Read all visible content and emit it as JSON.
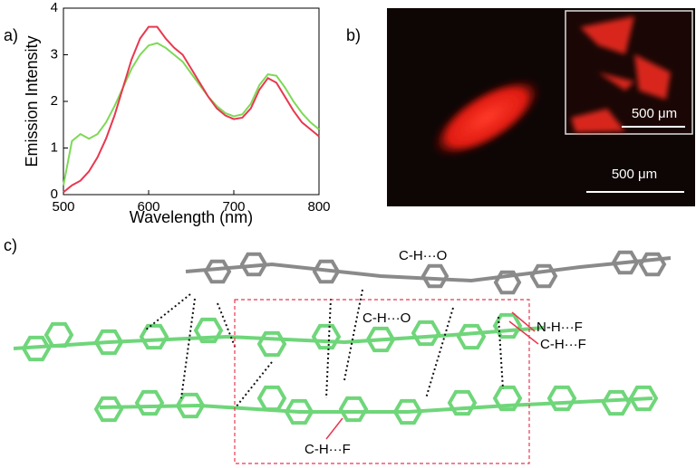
{
  "chart_data": {
    "type": "line",
    "xlabel": "Wavelength (nm)",
    "ylabel": "Emission Intensity",
    "x": [
      500,
      510,
      520,
      530,
      540,
      550,
      560,
      570,
      580,
      590,
      600,
      610,
      620,
      630,
      640,
      650,
      660,
      670,
      680,
      690,
      700,
      710,
      720,
      730,
      740,
      750,
      760,
      770,
      780,
      790,
      800
    ],
    "series": [
      {
        "color": "#7ed957",
        "values": [
          0.2,
          1.15,
          1.3,
          1.2,
          1.3,
          1.55,
          1.9,
          2.3,
          2.7,
          3.0,
          3.2,
          3.25,
          3.15,
          3.0,
          2.85,
          2.6,
          2.35,
          2.1,
          1.9,
          1.75,
          1.68,
          1.72,
          1.95,
          2.35,
          2.58,
          2.55,
          2.3,
          2.0,
          1.75,
          1.55,
          1.4
        ]
      },
      {
        "color": "#e8384f",
        "values": [
          0.05,
          0.2,
          0.3,
          0.5,
          0.8,
          1.2,
          1.7,
          2.3,
          2.9,
          3.35,
          3.6,
          3.6,
          3.35,
          3.15,
          3.0,
          2.7,
          2.4,
          2.1,
          1.85,
          1.7,
          1.62,
          1.65,
          1.85,
          2.25,
          2.5,
          2.4,
          2.1,
          1.8,
          1.55,
          1.4,
          1.25
        ]
      }
    ],
    "xlim": [
      500,
      800
    ],
    "xticks": [
      500,
      600,
      700,
      800
    ],
    "ylim": [
      0,
      4
    ],
    "yticks": [
      0,
      1,
      2,
      3,
      4
    ]
  },
  "panel_labels": [
    "a)",
    "b)",
    "c)"
  ],
  "micrograph": {
    "scale_bar_inset": "500 μm",
    "scale_bar_main": "500 μm"
  },
  "structure": {
    "annotations": [
      "C-H···O",
      "C-H···O",
      "N-H···F",
      "C-H···F",
      "C-H···F"
    ]
  }
}
